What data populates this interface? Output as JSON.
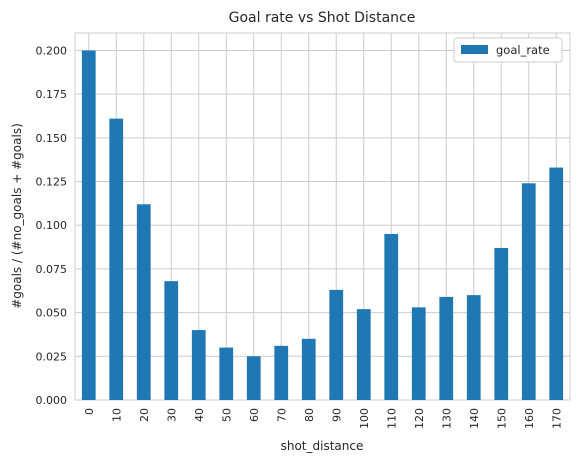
{
  "chart_data": {
    "type": "bar",
    "title": "Goal rate vs Shot Distance",
    "xlabel": "shot_distance",
    "ylabel": "#goals / (#no_goals + #goals)",
    "categories": [
      "0",
      "10",
      "20",
      "30",
      "40",
      "50",
      "60",
      "70",
      "80",
      "90",
      "100",
      "110",
      "120",
      "130",
      "140",
      "150",
      "160",
      "170"
    ],
    "series": [
      {
        "name": "goal_rate",
        "color": "#1f77b4",
        "values": [
          0.2,
          0.161,
          0.112,
          0.068,
          0.04,
          0.03,
          0.025,
          0.031,
          0.035,
          0.063,
          0.052,
          0.095,
          0.053,
          0.059,
          0.06,
          0.087,
          0.124,
          0.133
        ]
      }
    ],
    "ylim": [
      0,
      0.21
    ],
    "yticks": [
      "0.000",
      "0.025",
      "0.050",
      "0.075",
      "0.100",
      "0.125",
      "0.150",
      "0.175",
      "0.200"
    ],
    "grid": true,
    "legend_position": "top-right"
  }
}
